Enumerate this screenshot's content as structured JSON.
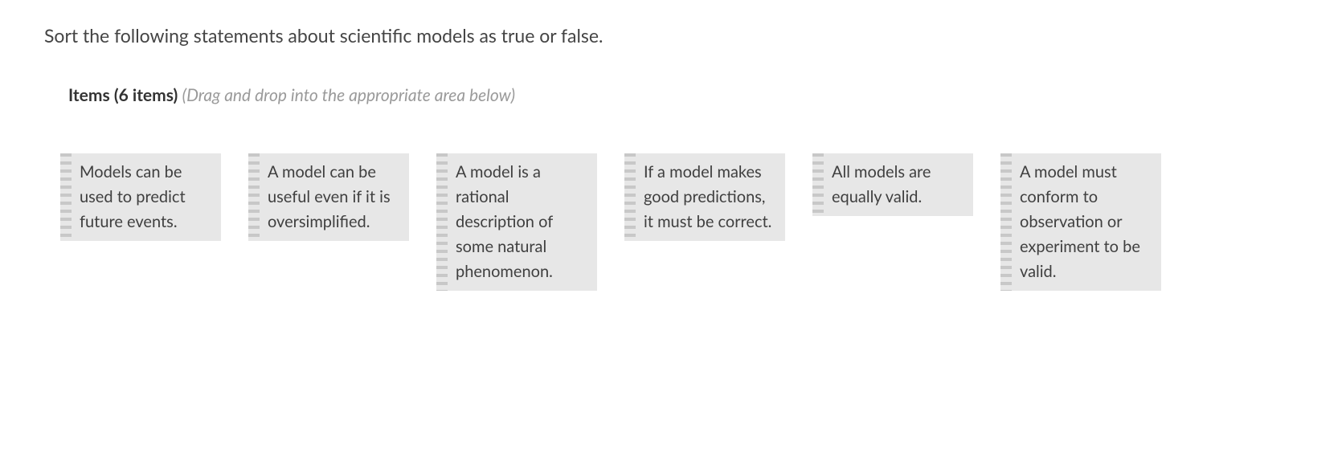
{
  "prompt": "Sort the following statements about scientific models as true or false.",
  "items_header": {
    "label_prefix": "Items",
    "count_text": "(6 items)",
    "hint": "(Drag and drop into the appropriate area below)"
  },
  "cards": [
    {
      "text": "Models can be used to predict future events."
    },
    {
      "text": "A model can be useful even if it is oversimplified."
    },
    {
      "text": "A model is a rational description of some natural phenomenon."
    },
    {
      "text": "If a model makes good predictions, it must be correct."
    },
    {
      "text": "All models are equally valid."
    },
    {
      "text": "A model must conform to observation or experiment to be valid."
    }
  ],
  "colors": {
    "card_bg": "#e7e7e7",
    "grip_dot": "#c8c8c8",
    "hint_text": "#9a9a9a",
    "body_text": "#3a3a3a"
  }
}
